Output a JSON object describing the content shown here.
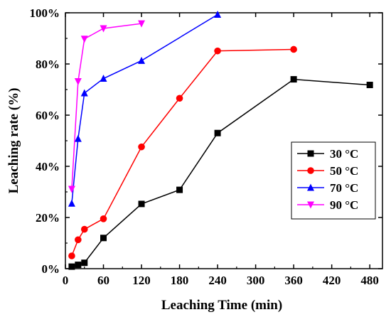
{
  "chart_data": {
    "type": "line",
    "xlabel": "Leaching Time (min)",
    "ylabel": "Leaching rate (%)",
    "xlim": [
      0,
      500
    ],
    "ylim": [
      0,
      100
    ],
    "xticks": [
      0,
      60,
      120,
      180,
      240,
      300,
      360,
      420,
      480
    ],
    "yticks": [
      0,
      20,
      40,
      60,
      80,
      100
    ],
    "ytick_labels": [
      "0%",
      "20%",
      "40%",
      "60%",
      "80%",
      "100%"
    ],
    "xtick_labels": [
      "0",
      "60",
      "120",
      "180",
      "240",
      "300",
      "360",
      "420",
      "480"
    ],
    "grid": false,
    "legend_position": "right",
    "series": [
      {
        "name": "30 °C",
        "color": "#000000",
        "marker": "square",
        "x": [
          10,
          20,
          30,
          60,
          120,
          180,
          240,
          360,
          480
        ],
        "y": [
          0.8,
          1.5,
          2.3,
          12,
          25.3,
          30.8,
          53,
          74,
          71.8
        ]
      },
      {
        "name": "50 °C",
        "color": "#ff0000",
        "marker": "circle",
        "x": [
          10,
          20,
          30,
          60,
          120,
          180,
          240,
          360
        ],
        "y": [
          5,
          11.3,
          15.4,
          19.5,
          47.6,
          66.6,
          85.1,
          85.7
        ]
      },
      {
        "name": "70 °C",
        "color": "#0000ff",
        "marker": "triangle-up",
        "x": [
          10,
          20,
          30,
          60,
          120,
          240
        ],
        "y": [
          25.5,
          50.8,
          68.6,
          74.3,
          81.3,
          99.3
        ]
      },
      {
        "name": "90 °C",
        "color": "#ff00ff",
        "marker": "triangle-down",
        "x": [
          10,
          20,
          30,
          60,
          120
        ],
        "y": [
          31.1,
          73.2,
          89.8,
          93.9,
          95.8
        ]
      }
    ]
  }
}
